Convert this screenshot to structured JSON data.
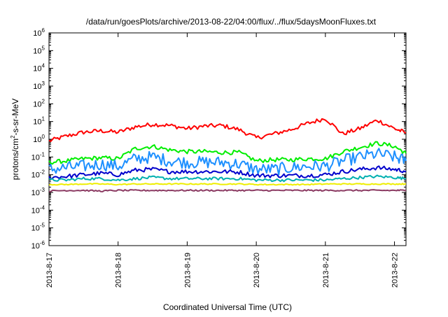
{
  "chart_data": {
    "type": "line",
    "title": "/data/run/goesPlots/archive/2013-08-22/04:00/flux/../flux/5daysMoonFluxes.txt",
    "xlabel": "Coordinated Universal Time (UTC)",
    "ylabel": {
      "prefix": "protons/cm",
      "sup": "2",
      "suffix": "-s-sr-MeV"
    },
    "yscale": "log",
    "ylim": [
      1e-06,
      1000000.0
    ],
    "xlim": [
      "2013-08-17T00:00Z",
      "2013-08-22T04:00Z"
    ],
    "xticks": [
      "2013-8-17",
      "2013-8-18",
      "2013-8-19",
      "2013-8-20",
      "2013-8-21",
      "2013-8-22"
    ],
    "yticks": [
      {
        "value": 1e-06,
        "base": "10",
        "exp": "-6"
      },
      {
        "value": 1e-05,
        "base": "10",
        "exp": "-5"
      },
      {
        "value": 0.0001,
        "base": "10",
        "exp": "-4"
      },
      {
        "value": 0.001,
        "base": "10",
        "exp": "-3"
      },
      {
        "value": 0.01,
        "base": "10",
        "exp": "-2"
      },
      {
        "value": 0.1,
        "base": "10",
        "exp": "-1"
      },
      {
        "value": 1,
        "base": "10",
        "exp": "0"
      },
      {
        "value": 10,
        "base": "10",
        "exp": "1"
      },
      {
        "value": 100,
        "base": "10",
        "exp": "2"
      },
      {
        "value": 1000,
        "base": "10",
        "exp": "3"
      },
      {
        "value": 10000,
        "base": "10",
        "exp": "4"
      },
      {
        "value": 100000,
        "base": "10",
        "exp": "5"
      },
      {
        "value": 1000000,
        "base": "10",
        "exp": "6"
      }
    ],
    "grid": false,
    "legend": "none",
    "x": [
      "2013-08-17T00:00Z",
      "2013-08-17T06:00Z",
      "2013-08-17T12:00Z",
      "2013-08-17T18:00Z",
      "2013-08-18T00:00Z",
      "2013-08-18T06:00Z",
      "2013-08-18T12:00Z",
      "2013-08-18T18:00Z",
      "2013-08-19T00:00Z",
      "2013-08-19T06:00Z",
      "2013-08-19T12:00Z",
      "2013-08-19T18:00Z",
      "2013-08-20T00:00Z",
      "2013-08-20T06:00Z",
      "2013-08-20T12:00Z",
      "2013-08-20T18:00Z",
      "2013-08-21T00:00Z",
      "2013-08-21T06:00Z",
      "2013-08-21T12:00Z",
      "2013-08-21T18:00Z",
      "2013-08-22T00:00Z",
      "2013-08-22T04:00Z"
    ],
    "series": [
      {
        "color": "#ff0000",
        "values": [
          0.8,
          1.5,
          2.5,
          3.0,
          2.5,
          5.0,
          7.0,
          6.0,
          4.0,
          5.5,
          6.0,
          3.5,
          1.2,
          2.0,
          3.5,
          8.0,
          15.0,
          2.0,
          4.0,
          12.0,
          4.0,
          2.3
        ]
      },
      {
        "color": "#00ee00",
        "values": [
          0.05,
          0.06,
          0.08,
          0.09,
          0.08,
          0.3,
          0.4,
          0.25,
          0.2,
          0.2,
          0.18,
          0.18,
          0.06,
          0.07,
          0.07,
          0.08,
          0.08,
          0.2,
          0.35,
          0.6,
          0.4,
          0.16
        ]
      },
      {
        "color": "#1e90ff",
        "values": [
          0.02,
          0.025,
          0.03,
          0.04,
          0.03,
          0.08,
          0.1,
          0.06,
          0.05,
          0.05,
          0.05,
          0.04,
          0.02,
          0.02,
          0.025,
          0.03,
          0.03,
          0.06,
          0.1,
          0.15,
          0.1,
          0.06
        ]
      },
      {
        "color": "#0000cc",
        "values": [
          0.007,
          0.008,
          0.01,
          0.012,
          0.01,
          0.018,
          0.02,
          0.015,
          0.015,
          0.015,
          0.015,
          0.014,
          0.009,
          0.009,
          0.009,
          0.009,
          0.01,
          0.015,
          0.02,
          0.025,
          0.02,
          0.016
        ]
      },
      {
        "color": "#00b0b0",
        "values": [
          0.005,
          0.005,
          0.006,
          0.006,
          0.005,
          0.006,
          0.007,
          0.006,
          0.006,
          0.006,
          0.006,
          0.006,
          0.005,
          0.005,
          0.005,
          0.005,
          0.005,
          0.006,
          0.007,
          0.008,
          0.007,
          0.006
        ]
      },
      {
        "color": "#eeee00",
        "values": [
          0.0028,
          0.0028,
          0.003,
          0.003,
          0.0028,
          0.003,
          0.003,
          0.003,
          0.003,
          0.003,
          0.003,
          0.003,
          0.0028,
          0.0028,
          0.0028,
          0.0028,
          0.003,
          0.003,
          0.003,
          0.003,
          0.003,
          0.003
        ]
      },
      {
        "color": "#8b3a62",
        "values": [
          0.0012,
          0.0013,
          0.0013,
          0.0012,
          0.0013,
          0.0013,
          0.0013,
          0.0013,
          0.0013,
          0.0013,
          0.0013,
          0.0013,
          0.0013,
          0.0013,
          0.0013,
          0.0013,
          0.0013,
          0.0013,
          0.0013,
          0.0013,
          0.0013,
          0.0013
        ]
      }
    ]
  }
}
